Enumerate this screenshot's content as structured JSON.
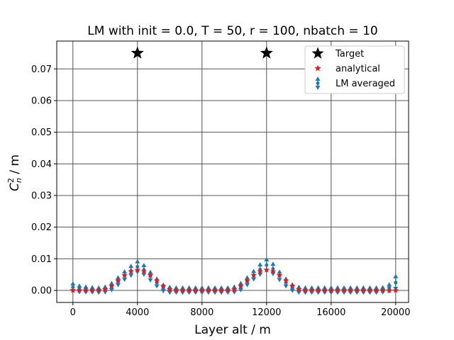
{
  "chart_data": {
    "type": "scatter",
    "title": "LM with init = 0.0, T = 50, r = 100, nbatch = 10",
    "xlabel": "Layer alt / m",
    "ylabel_main": "C",
    "ylabel_sup": "2",
    "ylabel_sub": "n",
    "ylabel_unit": " / m",
    "xlim": [
      -1000,
      20800
    ],
    "ylim": [
      -0.0038,
      0.0788
    ],
    "xticks": [
      0,
      4000,
      8000,
      12000,
      16000,
      20000
    ],
    "yticks": [
      0.0,
      0.01,
      0.02,
      0.03,
      0.04,
      0.05,
      0.06,
      0.07
    ],
    "xtick_labels": [
      "0",
      "4000",
      "8000",
      "12000",
      "16000",
      "20000"
    ],
    "ytick_labels": [
      "0.00",
      "0.01",
      "0.02",
      "0.03",
      "0.04",
      "0.05",
      "0.06",
      "0.07"
    ],
    "grid": true,
    "legend_position": "top-right",
    "legend": [
      "Target",
      "analytical",
      "LM averaged"
    ],
    "colors": {
      "target": "#000000",
      "analytical": "#e31a1c",
      "lm": "#1f77b4",
      "grid": "#555555"
    },
    "series": [
      {
        "name": "Target",
        "marker": "star",
        "x": [
          4000,
          12000
        ],
        "y": [
          0.075,
          0.075
        ]
      },
      {
        "name": "analytical",
        "marker": "star",
        "x": [
          0,
          400,
          800,
          1200,
          1600,
          2000,
          2400,
          2800,
          3200,
          3600,
          4000,
          4400,
          4800,
          5200,
          5600,
          6000,
          6400,
          6800,
          7200,
          7600,
          8000,
          8400,
          8800,
          9200,
          9600,
          10000,
          10400,
          10800,
          11200,
          11600,
          12000,
          12400,
          12800,
          13200,
          13600,
          14000,
          14400,
          14800,
          15200,
          15600,
          16000,
          16400,
          16800,
          17200,
          17600,
          18000,
          18400,
          18800,
          19200,
          19600,
          20000
        ],
        "y": [
          0,
          0,
          0,
          0,
          0,
          0.0003,
          0.0014,
          0.0031,
          0.0048,
          0.006,
          0.0065,
          0.006,
          0.0048,
          0.0031,
          0.0014,
          0.0003,
          0,
          0,
          0,
          0,
          0,
          0,
          0,
          0,
          0,
          0.0003,
          0.0014,
          0.0031,
          0.0048,
          0.006,
          0.0065,
          0.006,
          0.0048,
          0.0031,
          0.0014,
          0.0003,
          0,
          0,
          0,
          0,
          0,
          0,
          0,
          0,
          0,
          0,
          0,
          0,
          0,
          0,
          0
        ]
      },
      {
        "name": "LM averaged",
        "marker": "errorbar",
        "x": [
          0,
          400,
          800,
          1200,
          1600,
          2000,
          2400,
          2800,
          3200,
          3600,
          4000,
          4400,
          4800,
          5200,
          5600,
          6000,
          6400,
          6800,
          7200,
          7600,
          8000,
          8400,
          8800,
          9200,
          9600,
          10000,
          10400,
          10800,
          11200,
          11600,
          12000,
          12400,
          12800,
          13200,
          13600,
          14000,
          14400,
          14800,
          15200,
          15600,
          16000,
          16400,
          16800,
          17200,
          17600,
          18000,
          18400,
          18800,
          19200,
          19600,
          20000
        ],
        "y": [
          0.001,
          0.0005,
          0.0003,
          0.0002,
          0.0001,
          0.0003,
          0.0012,
          0.0029,
          0.0047,
          0.0062,
          0.0075,
          0.0065,
          0.0045,
          0.0025,
          0.0008,
          0.0002,
          0.0001,
          0.0001,
          0.0001,
          0.0001,
          0.0001,
          0.0001,
          0.0001,
          0.0001,
          0.0001,
          0.0003,
          0.0012,
          0.0029,
          0.0048,
          0.0066,
          0.008,
          0.0068,
          0.0046,
          0.0025,
          0.0009,
          0.0002,
          0.0001,
          0.0001,
          0.0001,
          0.0001,
          0.0001,
          0.0001,
          0.0001,
          0.0001,
          0.0001,
          0.0001,
          0.0001,
          0.0001,
          0.0002,
          0.0008,
          0.0025
        ],
        "err": [
          0.0008,
          0.0006,
          0.0005,
          0.0004,
          0.0004,
          0.0005,
          0.0007,
          0.0008,
          0.0009,
          0.0011,
          0.0013,
          0.0011,
          0.0009,
          0.0008,
          0.0006,
          0.0005,
          0.0004,
          0.0004,
          0.0004,
          0.0004,
          0.0004,
          0.0004,
          0.0004,
          0.0004,
          0.0004,
          0.0005,
          0.0007,
          0.0008,
          0.0009,
          0.0012,
          0.0014,
          0.0012,
          0.0009,
          0.0008,
          0.0006,
          0.0005,
          0.0004,
          0.0004,
          0.0004,
          0.0004,
          0.0004,
          0.0004,
          0.0004,
          0.0004,
          0.0004,
          0.0004,
          0.0004,
          0.0004,
          0.0004,
          0.0007,
          0.0016
        ]
      }
    ]
  }
}
